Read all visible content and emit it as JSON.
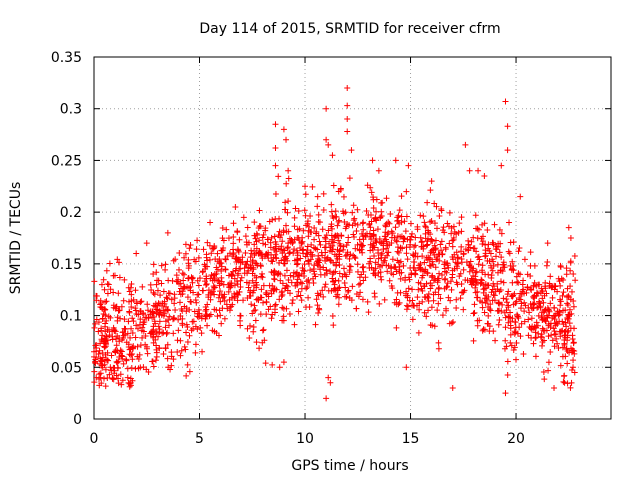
{
  "chart_data": {
    "type": "scatter",
    "title": "Day 114 of 2015, SRMTID for receiver cfrm",
    "xlabel": "GPS time / hours",
    "ylabel": "SRMTID / TECUs",
    "xlim": [
      0,
      24.5
    ],
    "ylim": [
      0,
      0.35
    ],
    "xticks": [
      0,
      5,
      10,
      15,
      20
    ],
    "xtick_labels": [
      "0",
      "5",
      "10",
      "15",
      "20"
    ],
    "yticks": [
      0,
      0.05,
      0.1,
      0.15,
      0.2,
      0.25,
      0.3,
      0.35
    ],
    "ytick_labels": [
      "0",
      "0.05",
      "0.1",
      "0.15",
      "0.2",
      "0.25",
      "0.3",
      "0.35"
    ],
    "grid": true,
    "marker": "+",
    "series_color": "#ff0000",
    "series": [
      {
        "name": "SRMTID",
        "trend": {
          "x": [
            0,
            1,
            2,
            3,
            4,
            5,
            6,
            7,
            8,
            9,
            10,
            11,
            12,
            13,
            14,
            15,
            16,
            17,
            18,
            19,
            20,
            21,
            22,
            22.8
          ],
          "y": [
            0.075,
            0.085,
            0.08,
            0.1,
            0.11,
            0.12,
            0.135,
            0.14,
            0.145,
            0.15,
            0.16,
            0.155,
            0.16,
            0.17,
            0.165,
            0.155,
            0.145,
            0.15,
            0.14,
            0.13,
            0.115,
            0.105,
            0.095,
            0.09
          ]
        },
        "highlights": [
          {
            "x": 0.0,
            "y": 0.065
          },
          {
            "x": 0.05,
            "y": 0.055
          },
          {
            "x": 0.3,
            "y": 0.04
          },
          {
            "x": 0.5,
            "y": 0.125
          },
          {
            "x": 0.7,
            "y": 0.13
          },
          {
            "x": 1.6,
            "y": 0.04
          },
          {
            "x": 2.0,
            "y": 0.16
          },
          {
            "x": 2.5,
            "y": 0.17
          },
          {
            "x": 3.5,
            "y": 0.18
          },
          {
            "x": 5.5,
            "y": 0.19
          },
          {
            "x": 6.7,
            "y": 0.205
          },
          {
            "x": 7.1,
            "y": 0.195
          },
          {
            "x": 8.6,
            "y": 0.285
          },
          {
            "x": 8.6,
            "y": 0.262
          },
          {
            "x": 9.0,
            "y": 0.28
          },
          {
            "x": 9.1,
            "y": 0.27
          },
          {
            "x": 8.6,
            "y": 0.245
          },
          {
            "x": 9.2,
            "y": 0.24
          },
          {
            "x": 8.8,
            "y": 0.05
          },
          {
            "x": 9.0,
            "y": 0.055
          },
          {
            "x": 10.0,
            "y": 0.225
          },
          {
            "x": 10.6,
            "y": 0.215
          },
          {
            "x": 11.0,
            "y": 0.27
          },
          {
            "x": 11.0,
            "y": 0.3
          },
          {
            "x": 11.1,
            "y": 0.265
          },
          {
            "x": 11.0,
            "y": 0.02
          },
          {
            "x": 11.1,
            "y": 0.04
          },
          {
            "x": 11.2,
            "y": 0.035
          },
          {
            "x": 11.3,
            "y": 0.255
          },
          {
            "x": 12.0,
            "y": 0.32
          },
          {
            "x": 12.0,
            "y": 0.303
          },
          {
            "x": 12.0,
            "y": 0.29
          },
          {
            "x": 12.0,
            "y": 0.278
          },
          {
            "x": 12.2,
            "y": 0.26
          },
          {
            "x": 13.2,
            "y": 0.25
          },
          {
            "x": 13.5,
            "y": 0.24
          },
          {
            "x": 14.3,
            "y": 0.25
          },
          {
            "x": 14.9,
            "y": 0.245
          },
          {
            "x": 14.8,
            "y": 0.05
          },
          {
            "x": 16.0,
            "y": 0.23
          },
          {
            "x": 17.0,
            "y": 0.03
          },
          {
            "x": 17.6,
            "y": 0.265
          },
          {
            "x": 17.8,
            "y": 0.24
          },
          {
            "x": 18.2,
            "y": 0.24
          },
          {
            "x": 18.5,
            "y": 0.235
          },
          {
            "x": 19.3,
            "y": 0.245
          },
          {
            "x": 19.5,
            "y": 0.307
          },
          {
            "x": 19.6,
            "y": 0.283
          },
          {
            "x": 19.6,
            "y": 0.26
          },
          {
            "x": 19.5,
            "y": 0.025
          },
          {
            "x": 20.2,
            "y": 0.215
          },
          {
            "x": 21.5,
            "y": 0.17
          },
          {
            "x": 21.8,
            "y": 0.03
          },
          {
            "x": 22.5,
            "y": 0.185
          },
          {
            "x": 22.6,
            "y": 0.175
          },
          {
            "x": 22.3,
            "y": 0.035
          },
          {
            "x": 22.4,
            "y": 0.14
          },
          {
            "x": 22.7,
            "y": 0.05
          }
        ]
      }
    ]
  }
}
